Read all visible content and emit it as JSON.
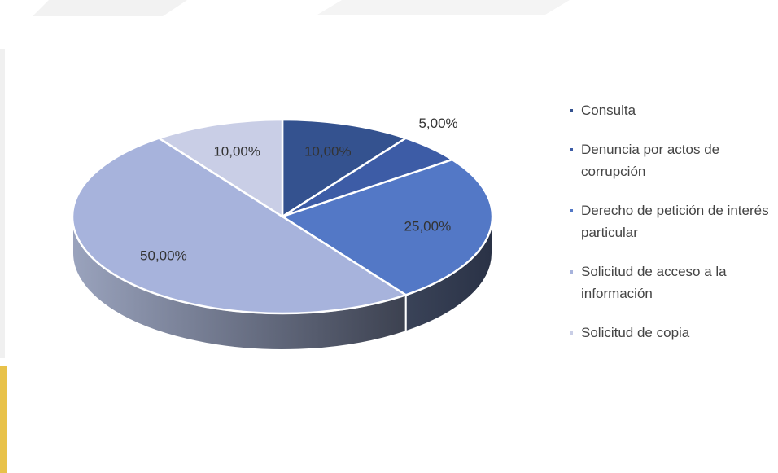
{
  "chart_data": {
    "type": "pie",
    "categories": [
      "Consulta",
      "Denuncia por actos de corrupción",
      "Derecho de petición de interés particular",
      "Solicitud de acceso a la información",
      "Solicitud de copia"
    ],
    "values": [
      10,
      5,
      25,
      50,
      10
    ],
    "value_labels": [
      "10,00%",
      "5,00%",
      "25,00%",
      "50,00%",
      "10,00%"
    ],
    "colors": [
      "#34528f",
      "#3d5ca6",
      "#5378c6",
      "#a7b3dc",
      "#c9cee6"
    ],
    "legend": "right"
  }
}
